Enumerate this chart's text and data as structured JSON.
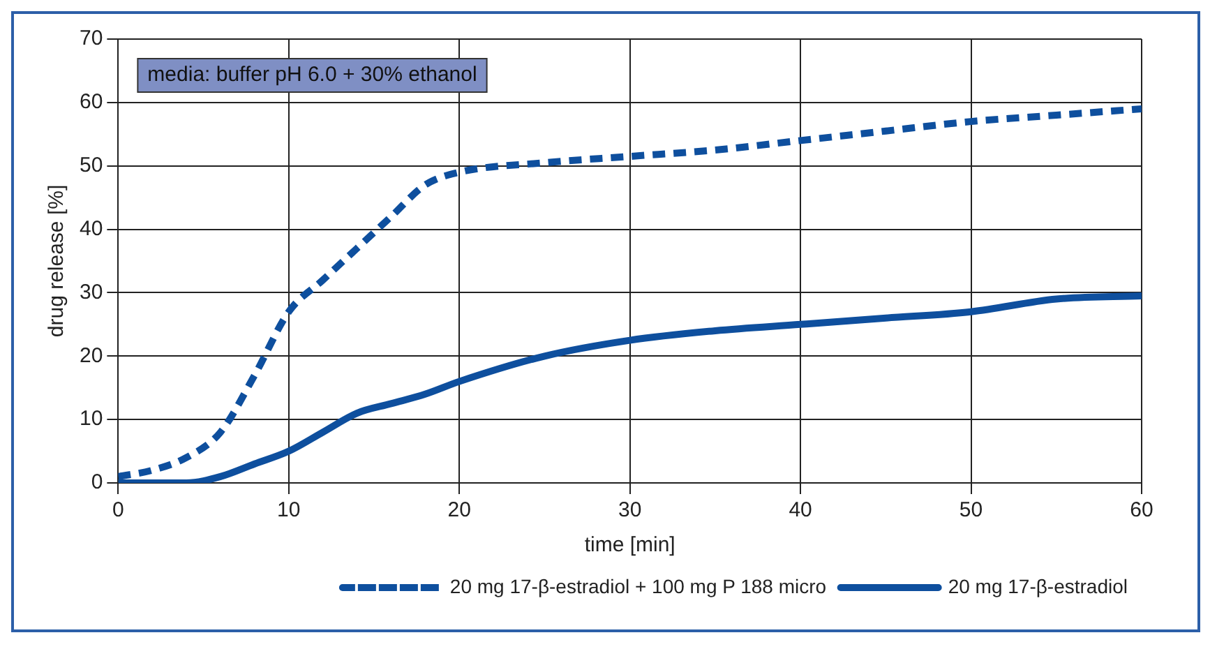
{
  "chart_data": {
    "type": "line",
    "xlabel": "time [min]",
    "ylabel": "drug release [%]",
    "annotations": [
      "media: buffer pH 6.0 + 30% ethanol"
    ],
    "xlim": [
      0,
      60
    ],
    "xticks": [
      0,
      10,
      20,
      30,
      40,
      50,
      60
    ],
    "ylim": [
      0,
      70
    ],
    "yticks": [
      0,
      10,
      20,
      30,
      40,
      50,
      60,
      70
    ],
    "grid": true,
    "legend": "bottom right",
    "marker": "none",
    "series": [
      {
        "name": "20 mg 17-β-estradiol + 100 mg P 188 micro",
        "color": "#0e4f9e",
        "line_style": "dashed",
        "x": [
          0,
          2,
          4,
          6,
          8,
          10,
          12,
          14,
          16,
          18,
          20,
          25,
          30,
          35,
          40,
          45,
          50,
          55,
          60
        ],
        "values": [
          1,
          2,
          4,
          8,
          17,
          27,
          32,
          37,
          42,
          47,
          49,
          50.5,
          51.5,
          52.5,
          54,
          55.5,
          57,
          58,
          59
        ]
      },
      {
        "name": "20 mg 17-β-estradiol",
        "color": "#0e4f9e",
        "line_style": "solid",
        "x": [
          0,
          2,
          4,
          6,
          8,
          10,
          12,
          14,
          16,
          18,
          20,
          25,
          30,
          35,
          40,
          45,
          50,
          55,
          60
        ],
        "values": [
          0,
          0,
          0,
          1,
          3,
          5,
          8,
          11,
          12.5,
          14,
          16,
          20,
          22.5,
          24,
          25,
          26,
          27,
          29,
          29.5
        ]
      }
    ]
  }
}
